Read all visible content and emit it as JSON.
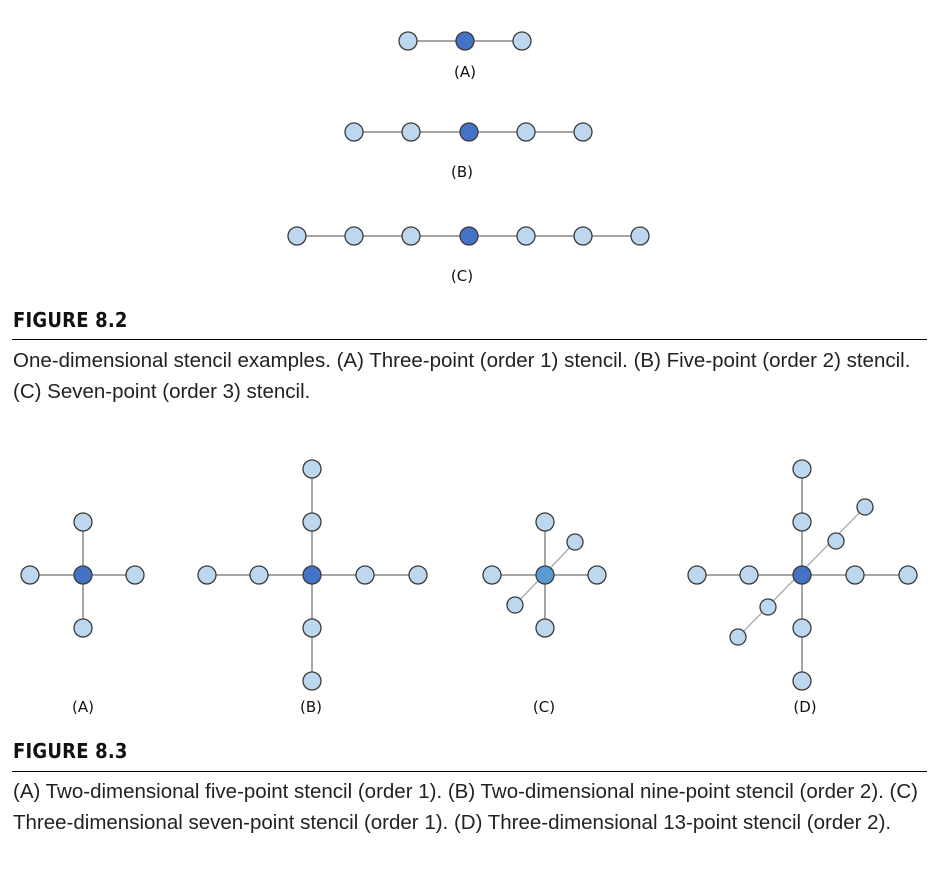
{
  "figure_8_2": {
    "title": "FIGURE 8.2",
    "caption": "One-dimensional stencil examples. (A) Three-point (order 1) stencil. (B) Five-point (order 2) stencil. (C) Seven-point (order 3) stencil.",
    "labels": [
      "(A)",
      "(B)",
      "(C)"
    ]
  },
  "figure_8_3": {
    "title": "FIGURE 8.3",
    "caption": "(A) Two-dimensional five-point stencil (order 1). (B) Two-dimensional nine-point stencil (order 2). (C) Three-dimensional seven-point stencil (order 1). (D) Three-dimensional 13-point stencil (order 2).",
    "labels": [
      "(A)",
      "(B)",
      "(C)",
      "(D)"
    ]
  },
  "colors": {
    "center_node": "#4472c4",
    "neighbor_node": "#bdd7ee",
    "node_stroke": "#3a3a3a",
    "edge": "#888888"
  }
}
